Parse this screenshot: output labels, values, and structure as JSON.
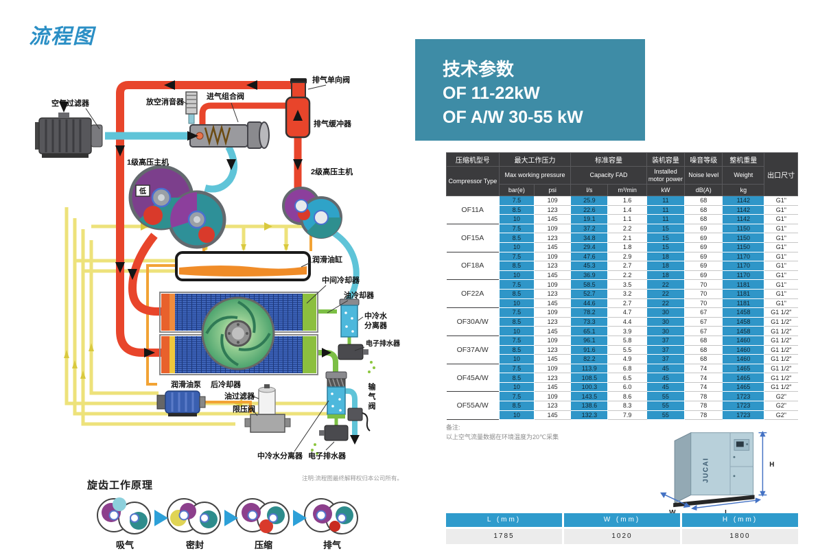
{
  "flow_diagram": {
    "title": "流程图",
    "note": "注明:流程图最终解释权归本公司所有。",
    "labels": {
      "air_filter": "空气过滤器",
      "silencer": "放空消音器",
      "intake_valve": "进气组合阀",
      "check_valve": "排气单向阀",
      "buffer": "排气缓冲器",
      "stage1": "1级高压主机",
      "stage2": "2级高压主机",
      "low": "低",
      "oil_tank": "润滑油缸",
      "intercooler": "中间冷却器",
      "oil_cooler": "油冷却器",
      "aftercooler": "后冷却器",
      "oil_pump": "润滑油泵",
      "oil_filter": "油过滤器",
      "limit_valve": "限压阀",
      "sep_top_l1": "中冷水",
      "sep_top_l2": "分离器",
      "drain_top": "电子排水器",
      "sep_bottom": "中冷水分离器",
      "drain_bottom": "电子排水器",
      "outlet_valve": "输气阀"
    }
  },
  "principle": {
    "title": "旋齿工作原理",
    "stages": [
      "吸气",
      "密封",
      "压缩",
      "排气"
    ]
  },
  "tech": {
    "title_line1": "技术参数",
    "title_line2": "OF 11-22kW",
    "title_line3": "OF A/W 30-55 kW",
    "brand": "JUCAI",
    "table": {
      "headers": {
        "model_cn": "压缩机型号",
        "model_en": "Compressor Type",
        "pressure_cn": "最大工作压力",
        "pressure_en": "Max working pressure",
        "capacity_cn": "标准容量",
        "capacity_en": "Capacity FAD",
        "power_cn": "装机容量",
        "power_en": "Installed motor power",
        "noise_cn": "噪音等级",
        "noise_en": "Noise level",
        "weight_cn": "整机重量",
        "weight_en": "Weight",
        "outlet_cn": "出口尺寸",
        "units": [
          "bar(e)",
          "psi",
          "l/s",
          "m³/min",
          "kW",
          "dB(A)",
          "kg"
        ]
      },
      "groups": [
        {
          "model": "OF11A",
          "rows": [
            [
              "7.5",
              "109",
              "25.9",
              "1.6",
              "11",
              "68",
              "1142",
              "G1\""
            ],
            [
              "8.5",
              "123",
              "22.6",
              "1.4",
              "11",
              "68",
              "1142",
              "G1\""
            ],
            [
              "10",
              "145",
              "19.1",
              "1.1",
              "11",
              "68",
              "1142",
              "G1\""
            ]
          ]
        },
        {
          "model": "OF15A",
          "rows": [
            [
              "7.5",
              "109",
              "37.2",
              "2.2",
              "15",
              "69",
              "1150",
              "G1\""
            ],
            [
              "8.5",
              "123",
              "34.8",
              "2.1",
              "15",
              "69",
              "1150",
              "G1\""
            ],
            [
              "10",
              "145",
              "29.4",
              "1.8",
              "15",
              "69",
              "1150",
              "G1\""
            ]
          ]
        },
        {
          "model": "OF18A",
          "rows": [
            [
              "7.5",
              "109",
              "47.6",
              "2.9",
              "18",
              "69",
              "1170",
              "G1\""
            ],
            [
              "8.5",
              "123",
              "45.3",
              "2.7",
              "18",
              "69",
              "1170",
              "G1\""
            ],
            [
              "10",
              "145",
              "36.9",
              "2.2",
              "18",
              "69",
              "1170",
              "G1\""
            ]
          ]
        },
        {
          "model": "OF22A",
          "rows": [
            [
              "7.5",
              "109",
              "58.5",
              "3.5",
              "22",
              "70",
              "1181",
              "G1\""
            ],
            [
              "8.5",
              "123",
              "52.7",
              "3.2",
              "22",
              "70",
              "1181",
              "G1\""
            ],
            [
              "10",
              "145",
              "44.6",
              "2.7",
              "22",
              "70",
              "1181",
              "G1\""
            ]
          ]
        },
        {
          "model": "OF30A/W",
          "rows": [
            [
              "7.5",
              "109",
              "78.2",
              "4.7",
              "30",
              "67",
              "1458",
              "G1 1/2\""
            ],
            [
              "8.5",
              "123",
              "73.3",
              "4.4",
              "30",
              "67",
              "1458",
              "G1 1/2\""
            ],
            [
              "10",
              "145",
              "65.1",
              "3.9",
              "30",
              "67",
              "1458",
              "G1 1/2\""
            ]
          ]
        },
        {
          "model": "OF37A/W",
          "rows": [
            [
              "7.5",
              "109",
              "96.1",
              "5.8",
              "37",
              "68",
              "1460",
              "G1 1/2\""
            ],
            [
              "8.5",
              "123",
              "91.6",
              "5.5",
              "37",
              "68",
              "1460",
              "G1 1/2\""
            ],
            [
              "10",
              "145",
              "82.2",
              "4.9",
              "37",
              "68",
              "1460",
              "G1 1/2\""
            ]
          ]
        },
        {
          "model": "OF45A/W",
          "rows": [
            [
              "7.5",
              "109",
              "113.9",
              "6.8",
              "45",
              "74",
              "1465",
              "G1 1/2\""
            ],
            [
              "8.5",
              "123",
              "108.5",
              "6.5",
              "45",
              "74",
              "1465",
              "G1 1/2\""
            ],
            [
              "10",
              "145",
              "100.3",
              "6.0",
              "45",
              "74",
              "1465",
              "G1 1/2\""
            ]
          ]
        },
        {
          "model": "OF55A/W",
          "rows": [
            [
              "7.5",
              "109",
              "143.5",
              "8.6",
              "55",
              "78",
              "1723",
              "G2\""
            ],
            [
              "8.5",
              "123",
              "138.6",
              "8.3",
              "55",
              "78",
              "1723",
              "G2\""
            ],
            [
              "10",
              "145",
              "132.3",
              "7.9",
              "55",
              "78",
              "1723",
              "G2\""
            ]
          ]
        }
      ]
    },
    "note_label": "备注:",
    "note_text": "以上空气流量数据在环境温度为20℃采集",
    "dimensions": {
      "headers": [
        "L (mm)",
        "W (mm)",
        "H (mm)"
      ],
      "values": [
        "1785",
        "1020",
        "1800"
      ]
    },
    "dim_marks": {
      "h": "H",
      "w": "W",
      "l": "L"
    }
  }
}
